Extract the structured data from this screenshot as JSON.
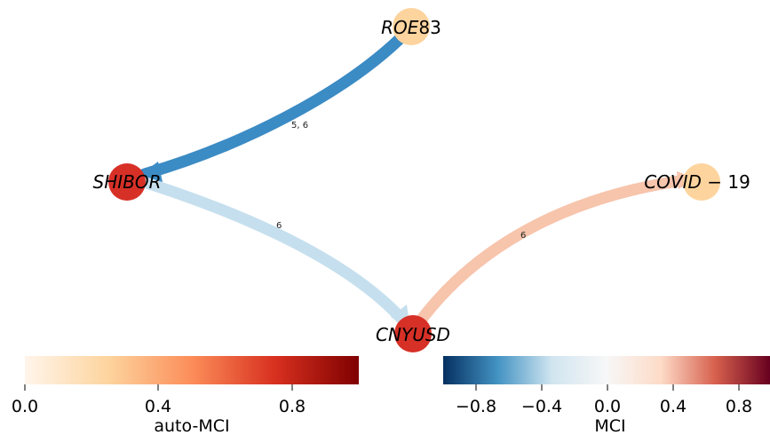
{
  "nodes": [
    {
      "id": "roe",
      "label_italic": "ROE",
      "label_rest": "83",
      "auto_mci": 0.2
    },
    {
      "id": "shibor",
      "label_italic": "SHIBOR",
      "label_rest": "",
      "auto_mci": 0.75
    },
    {
      "id": "cnyusd",
      "label_italic": "CNYUSD",
      "label_rest": "",
      "auto_mci": 0.75
    },
    {
      "id": "covid",
      "label_italic": "COVID",
      "label_rest": " − 19",
      "auto_mci": 0.2
    }
  ],
  "edges": [
    {
      "id": "roe-shibor",
      "from": "roe",
      "to": "shibor",
      "label": "5, 6",
      "mci": -0.75,
      "color": "#3b8bc4"
    },
    {
      "id": "shibor-cnyusd",
      "from": "shibor",
      "to": "cnyusd",
      "label": "6",
      "mci": -0.2,
      "color": "#c5dfee"
    },
    {
      "id": "covid-cnyusd",
      "from": "covid",
      "to": "cnyusd",
      "label": "6",
      "mci": 0.2,
      "color": "#f7c4ac"
    }
  ],
  "colorbars": {
    "auto_mci": {
      "title": "auto-MCI",
      "ticks": [
        "0.0",
        "0.4",
        "0.8"
      ],
      "range": [
        0,
        1
      ],
      "colors": [
        "#fff5eb",
        "#fdd49e",
        "#fc8d59",
        "#d7301f",
        "#7f0000"
      ]
    },
    "mci": {
      "title": "MCI",
      "ticks": [
        "−0.8",
        "−0.4",
        "0.0",
        "0.4",
        "0.8"
      ],
      "range": [
        -1,
        1
      ],
      "colors": [
        "#053061",
        "#4393c3",
        "#d1e5f0",
        "#f7f7f7",
        "#fddbc7",
        "#d6604d",
        "#67001f"
      ]
    }
  },
  "node_colors": {
    "roe": "#fdd49e",
    "shibor": "#d73027",
    "cnyusd": "#d73027",
    "covid": "#fdd49e"
  }
}
